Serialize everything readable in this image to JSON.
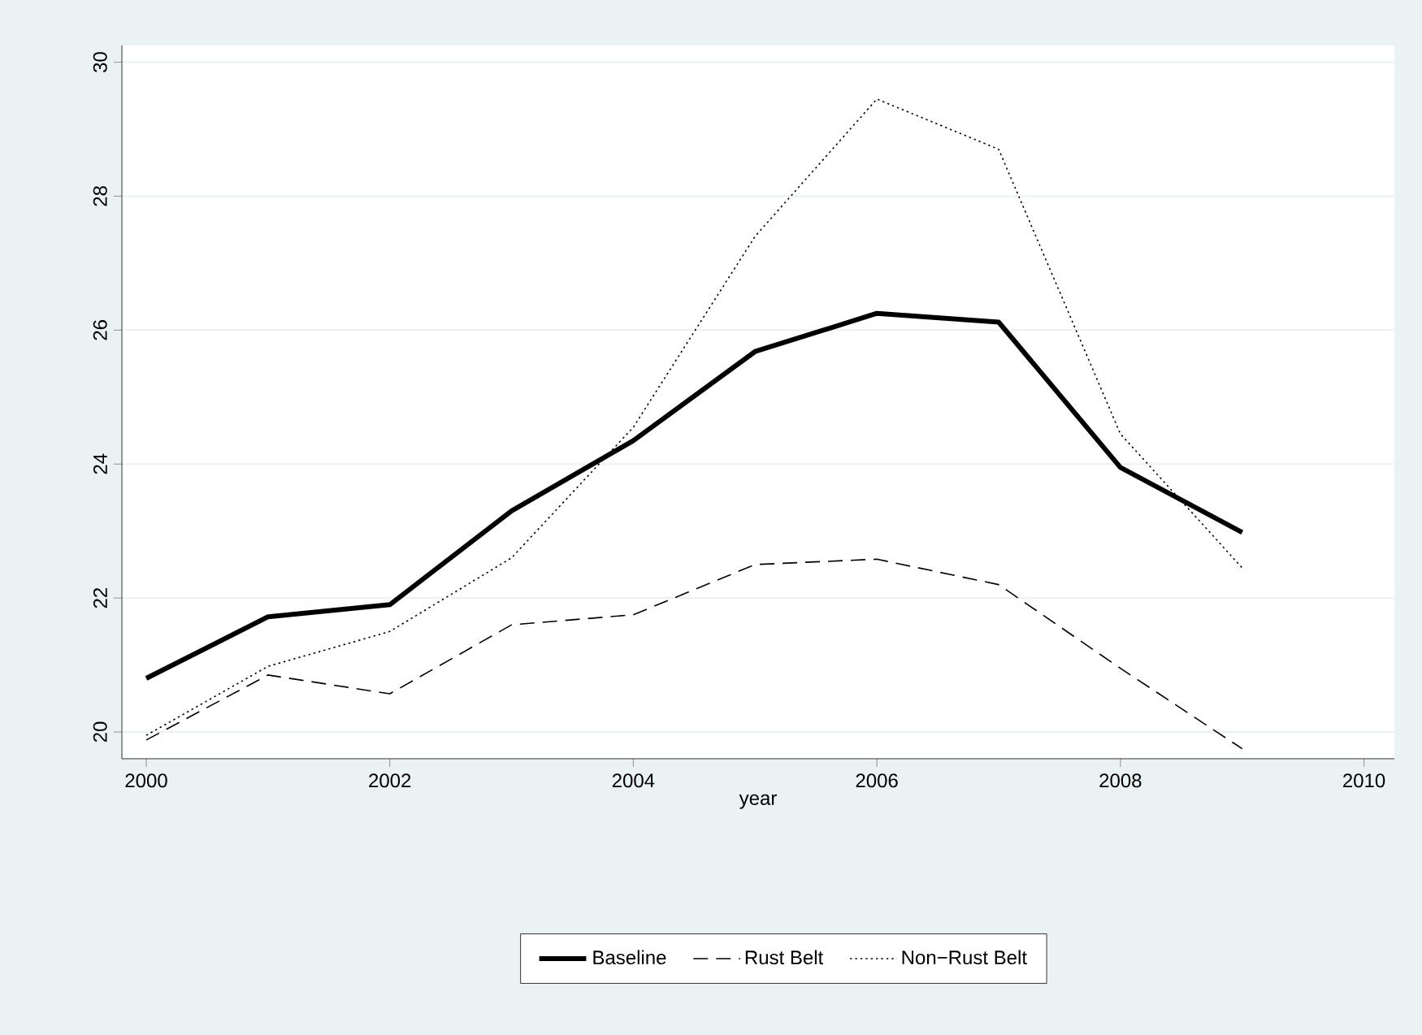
{
  "chart_data": {
    "type": "line",
    "xlabel": "year",
    "x": [
      2000,
      2001,
      2002,
      2003,
      2004,
      2005,
      2006,
      2007,
      2008,
      2009
    ],
    "series": [
      {
        "name": "Baseline",
        "color": "#000000",
        "line_style": "solid",
        "values": [
          20.8,
          21.72,
          21.9,
          23.3,
          24.35,
          25.68,
          26.25,
          26.12,
          23.95,
          22.98
        ]
      },
      {
        "name": "Rust Belt",
        "color": "#000000",
        "line_style": "dashed",
        "values": [
          19.88,
          20.85,
          20.57,
          21.6,
          21.75,
          22.5,
          22.58,
          22.2,
          20.95,
          19.75
        ]
      },
      {
        "name": "Non−Rust Belt",
        "color": "#000000",
        "line_style": "dotted",
        "values": [
          19.95,
          20.98,
          21.5,
          22.6,
          24.55,
          27.4,
          29.45,
          28.7,
          24.45,
          22.45
        ]
      }
    ],
    "xlim": [
      1999.8,
      2010.25
    ],
    "ylim": [
      19.6,
      30.25
    ],
    "xticks": [
      2000,
      2002,
      2004,
      2006,
      2008,
      2010
    ],
    "yticks": [
      20,
      22,
      24,
      26,
      28,
      30
    ],
    "grid": "y",
    "legend": "bottom",
    "marker": "none"
  }
}
